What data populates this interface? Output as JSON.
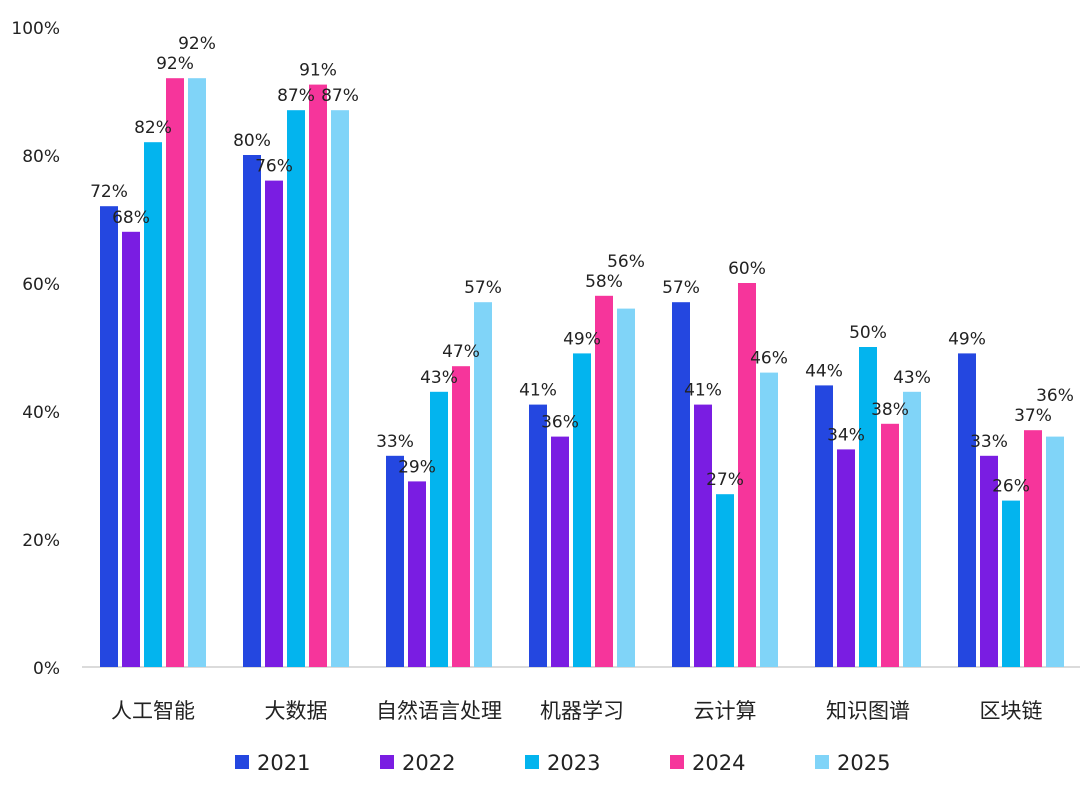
{
  "chart_data": {
    "type": "bar",
    "title": "",
    "xlabel": "",
    "ylabel": "",
    "ylim": [
      0,
      100
    ],
    "y_ticks": [
      "0%",
      "20%",
      "40%",
      "60%",
      "80%",
      "100%"
    ],
    "y_tick_values": [
      0,
      20,
      40,
      60,
      80,
      100
    ],
    "grid": false,
    "legend_position": "bottom",
    "categories": [
      "人工智能",
      "大数据",
      "自然语言处理",
      "机器学习",
      "云计算",
      "知识图谱",
      "区块链"
    ],
    "series": [
      {
        "name": "2021",
        "color": "#2447e0",
        "values": [
          72,
          80,
          33,
          41,
          57,
          44,
          49
        ]
      },
      {
        "name": "2022",
        "color": "#7a1de2",
        "values": [
          68,
          76,
          29,
          36,
          41,
          34,
          33
        ]
      },
      {
        "name": "2023",
        "color": "#03b4ee",
        "values": [
          82,
          87,
          43,
          49,
          27,
          50,
          26
        ]
      },
      {
        "name": "2024",
        "color": "#f6359b",
        "values": [
          92,
          91,
          47,
          58,
          60,
          38,
          37
        ]
      },
      {
        "name": "2025",
        "color": "#80d4f8",
        "values": [
          92,
          87,
          57,
          56,
          46,
          43,
          36
        ]
      }
    ],
    "value_suffix": "%"
  }
}
